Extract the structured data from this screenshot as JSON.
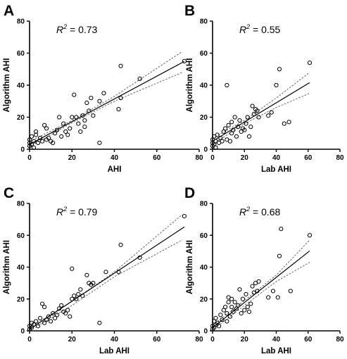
{
  "chart_data": [
    {
      "type": "scatter",
      "panel": "A",
      "annotation": {
        "prefix": "R",
        "sup": "2",
        "value": " = 0.73"
      },
      "xlabel": "AHI",
      "ylabel": "Algorithm AHI",
      "xlim": [
        0,
        80
      ],
      "ylim": [
        0,
        80
      ],
      "xticks": [
        0,
        20,
        40,
        60,
        80
      ],
      "yticks": [
        0,
        20,
        40,
        60,
        80
      ],
      "fit": {
        "intercept": 3,
        "slope": 0.71
      },
      "ci": {
        "lower": [
          [
            0,
            1.5
          ],
          [
            20,
            16.5
          ],
          [
            40,
            30
          ],
          [
            72,
            48
          ]
        ],
        "upper": [
          [
            0,
            4.8
          ],
          [
            20,
            18
          ],
          [
            40,
            33
          ],
          [
            72,
            61
          ]
        ]
      },
      "points": [
        [
          0,
          2
        ],
        [
          0,
          4
        ],
        [
          0,
          6
        ],
        [
          1,
          3
        ],
        [
          1,
          8
        ],
        [
          2,
          1
        ],
        [
          2,
          5
        ],
        [
          3,
          9
        ],
        [
          3,
          11
        ],
        [
          4,
          4
        ],
        [
          5,
          7
        ],
        [
          6,
          5
        ],
        [
          7,
          15
        ],
        [
          8,
          13
        ],
        [
          8,
          6
        ],
        [
          9,
          7
        ],
        [
          10,
          5
        ],
        [
          11,
          4
        ],
        [
          12,
          10
        ],
        [
          13,
          12
        ],
        [
          14,
          20
        ],
        [
          15,
          8
        ],
        [
          16,
          16
        ],
        [
          17,
          11
        ],
        [
          18,
          9
        ],
        [
          19,
          13
        ],
        [
          20,
          20
        ],
        [
          21,
          34
        ],
        [
          22,
          20
        ],
        [
          23,
          16
        ],
        [
          24,
          11
        ],
        [
          25,
          21
        ],
        [
          26,
          14
        ],
        [
          26,
          18
        ],
        [
          27,
          29
        ],
        [
          28,
          24
        ],
        [
          29,
          32
        ],
        [
          30,
          21
        ],
        [
          33,
          4
        ],
        [
          33,
          30
        ],
        [
          35,
          35
        ],
        [
          42,
          25
        ],
        [
          43,
          32
        ],
        [
          43,
          52
        ],
        [
          52,
          44
        ],
        [
          73,
          55
        ]
      ]
    },
    {
      "type": "scatter",
      "panel": "B",
      "annotation": {
        "prefix": "R",
        "sup": "2",
        "value": " = 0.55"
      },
      "xlabel": "Lab AHI",
      "ylabel": "Algorithm AHI",
      "xlim": [
        0,
        80
      ],
      "ylim": [
        0,
        80
      ],
      "xticks": [
        0,
        20,
        40,
        60,
        80
      ],
      "yticks": [
        0,
        20,
        40,
        60,
        80
      ],
      "fit": {
        "intercept": 5,
        "slope": 0.6
      },
      "ci": {
        "lower": [
          [
            0,
            3
          ],
          [
            20,
            16
          ],
          [
            40,
            26
          ],
          [
            61,
            35
          ]
        ],
        "upper": [
          [
            0,
            7
          ],
          [
            20,
            18
          ],
          [
            40,
            32
          ],
          [
            61,
            48
          ]
        ]
      },
      "points": [
        [
          0,
          2
        ],
        [
          0,
          4
        ],
        [
          0,
          6
        ],
        [
          1,
          3
        ],
        [
          1,
          8
        ],
        [
          2,
          1
        ],
        [
          2,
          5
        ],
        [
          3,
          9
        ],
        [
          4,
          4
        ],
        [
          5,
          7
        ],
        [
          6,
          5
        ],
        [
          7,
          11
        ],
        [
          8,
          13
        ],
        [
          9,
          40
        ],
        [
          9,
          6
        ],
        [
          10,
          15
        ],
        [
          11,
          5
        ],
        [
          12,
          10
        ],
        [
          12,
          17
        ],
        [
          13,
          12
        ],
        [
          14,
          20
        ],
        [
          15,
          8
        ],
        [
          16,
          14
        ],
        [
          17,
          18
        ],
        [
          18,
          11
        ],
        [
          19,
          13
        ],
        [
          20,
          12
        ],
        [
          21,
          16
        ],
        [
          22,
          20
        ],
        [
          23,
          8
        ],
        [
          24,
          14
        ],
        [
          25,
          27
        ],
        [
          26,
          22
        ],
        [
          27,
          25
        ],
        [
          28,
          24
        ],
        [
          29,
          20
        ],
        [
          35,
          21
        ],
        [
          37,
          23
        ],
        [
          40,
          40
        ],
        [
          42,
          50
        ],
        [
          45,
          16
        ],
        [
          48,
          17
        ],
        [
          61,
          54
        ]
      ]
    },
    {
      "type": "scatter",
      "panel": "C",
      "annotation": {
        "prefix": "R",
        "sup": "2",
        "value": " = 0.79"
      },
      "xlabel": "Lab AHI",
      "ylabel": "Algorithm AHI",
      "xlim": [
        0,
        80
      ],
      "ylim": [
        0,
        80
      ],
      "xticks": [
        0,
        20,
        40,
        60,
        80
      ],
      "yticks": [
        0,
        20,
        40,
        60,
        80
      ],
      "fit": {
        "intercept": 1,
        "slope": 0.88
      },
      "ci": {
        "lower": [
          [
            0,
            0
          ],
          [
            20,
            16
          ],
          [
            40,
            34
          ],
          [
            72,
            57
          ]
        ],
        "upper": [
          [
            0,
            2
          ],
          [
            20,
            18.5
          ],
          [
            40,
            37
          ],
          [
            72,
            73
          ]
        ]
      },
      "points": [
        [
          0,
          1
        ],
        [
          0,
          3
        ],
        [
          1,
          2
        ],
        [
          1,
          5
        ],
        [
          2,
          4
        ],
        [
          3,
          6
        ],
        [
          4,
          3
        ],
        [
          5,
          8
        ],
        [
          6,
          17
        ],
        [
          7,
          15
        ],
        [
          7,
          5
        ],
        [
          8,
          7
        ],
        [
          9,
          9
        ],
        [
          10,
          6
        ],
        [
          11,
          11
        ],
        [
          12,
          8
        ],
        [
          13,
          10
        ],
        [
          14,
          14
        ],
        [
          15,
          16
        ],
        [
          16,
          12
        ],
        [
          17,
          11
        ],
        [
          18,
          13
        ],
        [
          19,
          9
        ],
        [
          20,
          20
        ],
        [
          20,
          39
        ],
        [
          21,
          22
        ],
        [
          22,
          20
        ],
        [
          23,
          23
        ],
        [
          24,
          26
        ],
        [
          25,
          22
        ],
        [
          27,
          35
        ],
        [
          28,
          30
        ],
        [
          29,
          29
        ],
        [
          30,
          30
        ],
        [
          33,
          5
        ],
        [
          36,
          37
        ],
        [
          42,
          37
        ],
        [
          43,
          54
        ],
        [
          52,
          46
        ],
        [
          73,
          72
        ]
      ]
    },
    {
      "type": "scatter",
      "panel": "D",
      "annotation": {
        "prefix": "R",
        "sup": "2",
        "value": " = 0.68"
      },
      "xlabel": "Lab AHI",
      "ylabel": "Algorithm AHI",
      "xlim": [
        0,
        80
      ],
      "ylim": [
        0,
        80
      ],
      "xticks": [
        0,
        20,
        40,
        60,
        80
      ],
      "yticks": [
        0,
        20,
        40,
        60,
        80
      ],
      "fit": {
        "intercept": 2,
        "slope": 0.79
      },
      "ci": {
        "lower": [
          [
            0,
            0.5
          ],
          [
            20,
            16
          ],
          [
            40,
            31
          ],
          [
            61,
            43
          ]
        ],
        "upper": [
          [
            0,
            3.5
          ],
          [
            20,
            19
          ],
          [
            40,
            35
          ],
          [
            61,
            57
          ]
        ]
      },
      "points": [
        [
          0,
          1
        ],
        [
          0,
          3
        ],
        [
          1,
          2
        ],
        [
          1,
          6
        ],
        [
          2,
          4
        ],
        [
          2,
          8
        ],
        [
          3,
          5
        ],
        [
          4,
          3
        ],
        [
          5,
          10
        ],
        [
          6,
          7
        ],
        [
          7,
          13
        ],
        [
          8,
          15
        ],
        [
          9,
          6
        ],
        [
          9,
          11
        ],
        [
          10,
          21
        ],
        [
          10,
          18
        ],
        [
          11,
          9
        ],
        [
          12,
          15
        ],
        [
          12,
          20
        ],
        [
          13,
          12
        ],
        [
          14,
          18
        ],
        [
          15,
          14
        ],
        [
          16,
          16
        ],
        [
          17,
          26
        ],
        [
          18,
          11
        ],
        [
          19,
          20
        ],
        [
          20,
          13
        ],
        [
          21,
          23
        ],
        [
          22,
          15
        ],
        [
          23,
          12
        ],
        [
          24,
          17
        ],
        [
          25,
          28
        ],
        [
          26,
          24
        ],
        [
          27,
          30
        ],
        [
          28,
          25
        ],
        [
          29,
          31
        ],
        [
          35,
          21
        ],
        [
          38,
          25
        ],
        [
          41,
          21
        ],
        [
          42,
          47
        ],
        [
          43,
          64
        ],
        [
          49,
          25
        ],
        [
          61,
          60
        ]
      ]
    }
  ]
}
